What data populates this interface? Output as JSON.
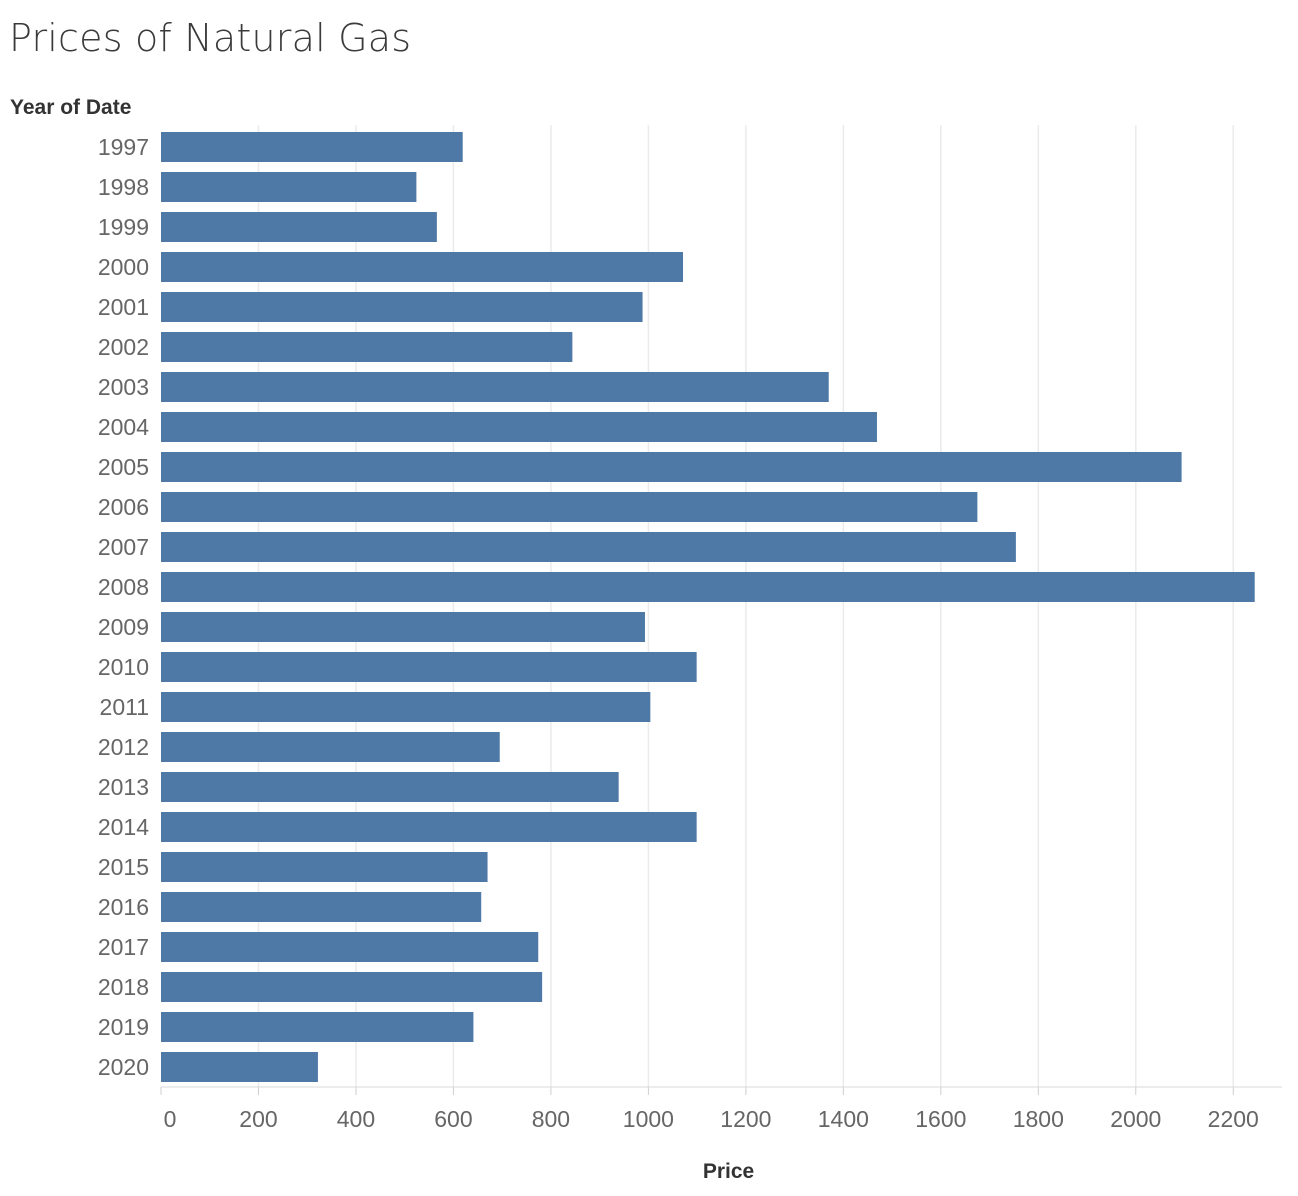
{
  "title": "Prices of Natural Gas",
  "y_header": "Year of Date",
  "chart_data": {
    "type": "bar",
    "orientation": "horizontal",
    "title": "Prices of Natural Gas",
    "xlabel": "Price",
    "ylabel": "Year of Date",
    "xlim": [
      0,
      2300
    ],
    "xticks": [
      0,
      200,
      400,
      600,
      800,
      1000,
      1200,
      1400,
      1600,
      1800,
      2000,
      2200
    ],
    "grid": true,
    "bar_color": "#4e79a7",
    "categories": [
      "1997",
      "1998",
      "1999",
      "2000",
      "2001",
      "2002",
      "2003",
      "2004",
      "2005",
      "2006",
      "2007",
      "2008",
      "2009",
      "2010",
      "2011",
      "2012",
      "2013",
      "2014",
      "2015",
      "2016",
      "2017",
      "2018",
      "2019",
      "2020"
    ],
    "values": [
      619,
      524,
      566,
      1071,
      988,
      844,
      1370,
      1469,
      2094,
      1675,
      1754,
      2244,
      993,
      1099,
      1004,
      695,
      939,
      1099,
      670,
      657,
      774,
      782,
      641,
      322
    ]
  }
}
